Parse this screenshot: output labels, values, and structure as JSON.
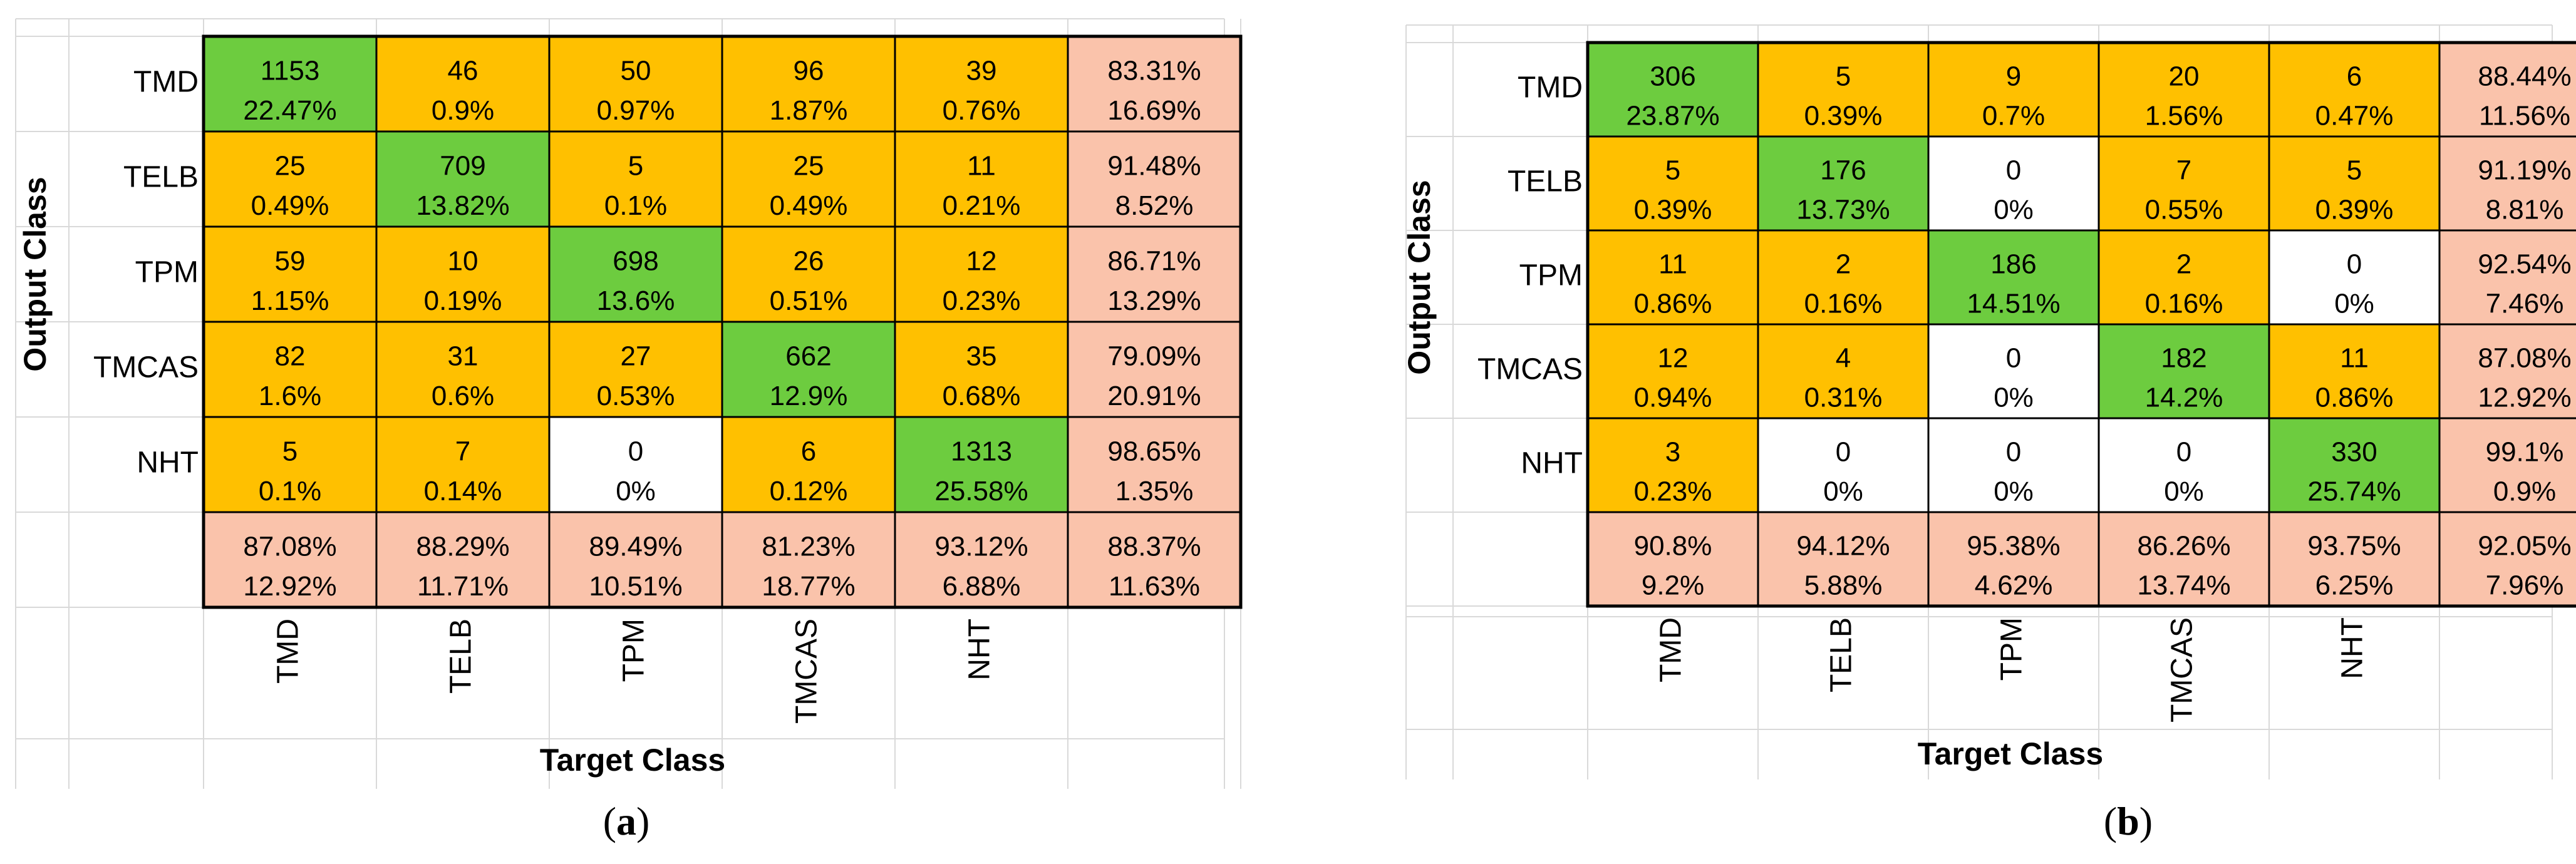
{
  "colors": {
    "diagonal": "#6dcc3f",
    "offdiagonal": "#ffc000",
    "zero": "#ffffff",
    "summary": "#fac3ab",
    "gridline": "#d9d9d9",
    "border": "#000000"
  },
  "chart_data": [
    {
      "type": "heatmap",
      "subtitle": "(a)",
      "caption": {
        "open": "(",
        "letter": "a",
        "close": ")"
      },
      "xlabel": "Target Class",
      "ylabel": "Output Class",
      "classes": [
        "TMD",
        "TELB",
        "TPM",
        "TMCAS",
        "NHT"
      ],
      "counts": [
        [
          1153,
          46,
          50,
          96,
          39
        ],
        [
          25,
          709,
          5,
          25,
          11
        ],
        [
          59,
          10,
          698,
          26,
          12
        ],
        [
          82,
          31,
          27,
          662,
          35
        ],
        [
          5,
          7,
          0,
          6,
          1313
        ]
      ],
      "percents": [
        [
          "22.47%",
          "0.9%",
          "0.97%",
          "1.87%",
          "0.76%"
        ],
        [
          "0.49%",
          "13.82%",
          "0.1%",
          "0.49%",
          "0.21%"
        ],
        [
          "1.15%",
          "0.19%",
          "13.6%",
          "0.51%",
          "0.23%"
        ],
        [
          "1.6%",
          "0.6%",
          "0.53%",
          "12.9%",
          "0.68%"
        ],
        [
          "0.1%",
          "0.14%",
          "0%",
          "0.12%",
          "25.58%"
        ]
      ],
      "row_summary": [
        [
          "83.31%",
          "16.69%"
        ],
        [
          "91.48%",
          "8.52%"
        ],
        [
          "86.71%",
          "13.29%"
        ],
        [
          "79.09%",
          "20.91%"
        ],
        [
          "98.65%",
          "1.35%"
        ]
      ],
      "col_summary": [
        [
          "87.08%",
          "12.92%"
        ],
        [
          "88.29%",
          "11.71%"
        ],
        [
          "89.49%",
          "10.51%"
        ],
        [
          "81.23%",
          "18.77%"
        ],
        [
          "93.12%",
          "6.88%"
        ]
      ],
      "overall": [
        "88.37%",
        "11.63%"
      ]
    },
    {
      "type": "heatmap",
      "subtitle": "(b)",
      "caption": {
        "open": "(",
        "letter": "b",
        "close": ")"
      },
      "xlabel": "Target Class",
      "ylabel": "Output Class",
      "classes": [
        "TMD",
        "TELB",
        "TPM",
        "TMCAS",
        "NHT"
      ],
      "counts": [
        [
          306,
          5,
          9,
          20,
          6
        ],
        [
          5,
          176,
          0,
          7,
          5
        ],
        [
          11,
          2,
          186,
          2,
          0
        ],
        [
          12,
          4,
          0,
          182,
          11
        ],
        [
          3,
          0,
          0,
          0,
          330
        ]
      ],
      "percents": [
        [
          "23.87%",
          "0.39%",
          "0.7%",
          "1.56%",
          "0.47%"
        ],
        [
          "0.39%",
          "13.73%",
          "0%",
          "0.55%",
          "0.39%"
        ],
        [
          "0.86%",
          "0.16%",
          "14.51%",
          "0.16%",
          "0%"
        ],
        [
          "0.94%",
          "0.31%",
          "0%",
          "14.2%",
          "0.86%"
        ],
        [
          "0.23%",
          "0%",
          "0%",
          "0%",
          "25.74%"
        ]
      ],
      "row_summary": [
        [
          "88.44%",
          "11.56%"
        ],
        [
          "91.19%",
          "8.81%"
        ],
        [
          "92.54%",
          "7.46%"
        ],
        [
          "87.08%",
          "12.92%"
        ],
        [
          "99.1%",
          "0.9%"
        ]
      ],
      "col_summary": [
        [
          "90.8%",
          "9.2%"
        ],
        [
          "94.12%",
          "5.88%"
        ],
        [
          "95.38%",
          "4.62%"
        ],
        [
          "86.26%",
          "13.74%"
        ],
        [
          "93.75%",
          "6.25%"
        ]
      ],
      "overall": [
        "92.05%",
        "7.96%"
      ]
    }
  ]
}
